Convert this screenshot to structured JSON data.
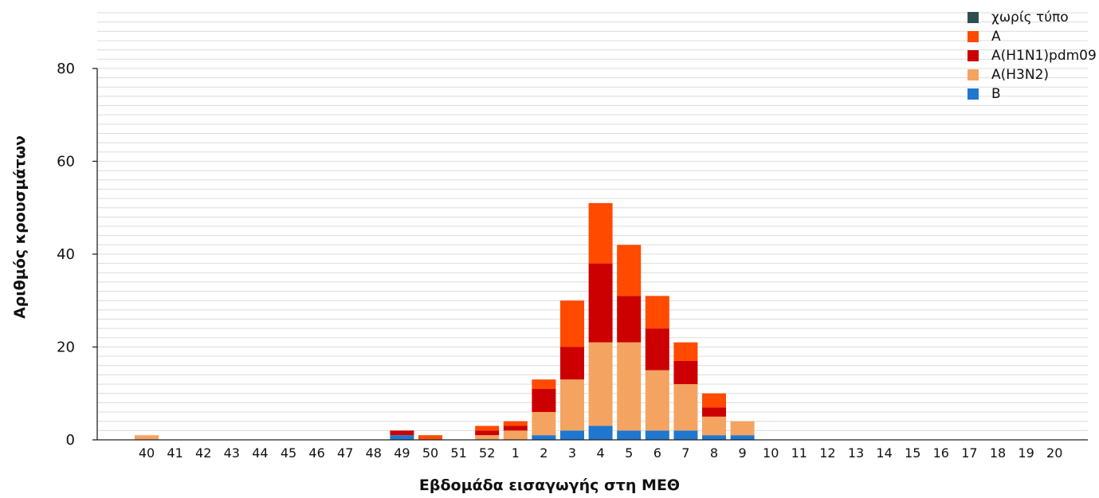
{
  "chart_data": {
    "type": "bar",
    "stacked": true,
    "title": "",
    "xlabel": "Εβδομάδα εισαγωγής στη ΜΕΘ",
    "ylabel": "Αριθμός κρουσμάτων",
    "ylim": [
      0,
      92
    ],
    "yticks": [
      0,
      20,
      40,
      60,
      80
    ],
    "grid": true,
    "legend_position": "top-right",
    "categories": [
      "40",
      "41",
      "42",
      "43",
      "44",
      "45",
      "46",
      "47",
      "48",
      "49",
      "50",
      "51",
      "52",
      "1",
      "2",
      "3",
      "4",
      "5",
      "6",
      "7",
      "8",
      "9",
      "10",
      "11",
      "12",
      "13",
      "14",
      "15",
      "16",
      "17",
      "18",
      "19",
      "20"
    ],
    "series": [
      {
        "name": "B",
        "color": "#1f77d0",
        "values": [
          0,
          0,
          0,
          0,
          0,
          0,
          0,
          0,
          0,
          1,
          0,
          0,
          0,
          0,
          1,
          2,
          3,
          2,
          2,
          2,
          1,
          1,
          0,
          0,
          0,
          0,
          0,
          0,
          0,
          0,
          0,
          0,
          0
        ]
      },
      {
        "name": "A(H3N2)",
        "color": "#f4a460",
        "values": [
          1,
          0,
          0,
          0,
          0,
          0,
          0,
          0,
          0,
          0,
          0,
          0,
          1,
          2,
          5,
          11,
          18,
          19,
          13,
          10,
          4,
          3,
          0,
          0,
          0,
          0,
          0,
          0,
          0,
          0,
          0,
          0,
          0
        ]
      },
      {
        "name": "A(H1N1)pdm09",
        "color": "#cc0000",
        "values": [
          0,
          0,
          0,
          0,
          0,
          0,
          0,
          0,
          0,
          1,
          0,
          0,
          1,
          1,
          5,
          7,
          17,
          10,
          9,
          5,
          2,
          0,
          0,
          0,
          0,
          0,
          0,
          0,
          0,
          0,
          0,
          0,
          0
        ]
      },
      {
        "name": "A",
        "color": "#ff4a00",
        "values": [
          0,
          0,
          0,
          0,
          0,
          0,
          0,
          0,
          0,
          0,
          1,
          0,
          1,
          1,
          2,
          10,
          13,
          11,
          7,
          4,
          3,
          0,
          0,
          0,
          0,
          0,
          0,
          0,
          0,
          0,
          0,
          0,
          0
        ]
      },
      {
        "name": "χωρίς τύπο",
        "color": "#2f4f4f",
        "values": [
          0,
          0,
          0,
          0,
          0,
          0,
          0,
          0,
          0,
          0,
          0,
          0,
          0,
          0,
          0,
          0,
          0,
          0,
          0,
          0,
          0,
          0,
          0,
          0,
          0,
          0,
          0,
          0,
          0,
          0,
          0,
          0,
          0
        ]
      }
    ],
    "legend_order": [
      "χωρίς τύπο",
      "A",
      "A(H1N1)pdm09",
      "A(H3N2)",
      "B"
    ]
  }
}
